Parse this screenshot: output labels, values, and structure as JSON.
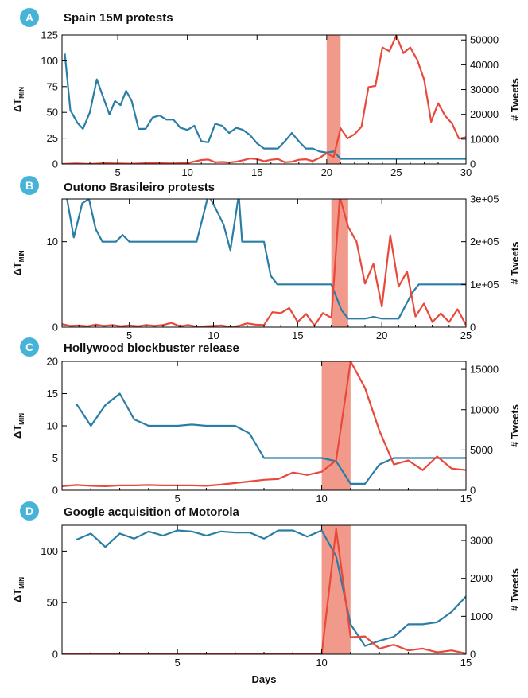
{
  "figure": {
    "xlabel": "Days"
  },
  "colors": {
    "blue": "#2a7ea6",
    "red": "#e8493a",
    "shade": "#f19a8c",
    "badge": "#48b3d9"
  },
  "chart_data": [
    {
      "panel": "A",
      "title": "Spain 15M protests",
      "type": "line",
      "ylabel_left": "ΔT",
      "ylabel_left_sub": "MIN",
      "ylabel_right": "# Tweets",
      "xlim": [
        1,
        30
      ],
      "ylim_left": [
        0,
        125
      ],
      "ylim_right": [
        0,
        52000
      ],
      "xticks": [
        5,
        10,
        15,
        20,
        25,
        30
      ],
      "yticks_left": [
        0,
        25,
        50,
        75,
        100,
        125
      ],
      "yticks_right": [
        0,
        10000,
        20000,
        30000,
        40000,
        50000
      ],
      "yticklabels_right": [
        "0",
        "10000",
        "20000",
        "30000",
        "40000",
        "50000"
      ],
      "shaded": [
        20,
        21
      ],
      "series": [
        {
          "axis": "left",
          "color": "blue",
          "x": [
            1.2,
            1.6,
            2.1,
            2.5,
            3.0,
            3.5,
            4.0,
            4.4,
            4.8,
            5.2,
            5.6,
            6.0,
            6.5,
            7.0,
            7.5,
            8.0,
            8.5,
            9.0,
            9.5,
            10.0,
            10.5,
            11.0,
            11.5,
            12.0,
            12.5,
            13.0,
            13.5,
            14.0,
            14.5,
            15.0,
            15.5,
            16.0,
            16.5,
            17.0,
            17.5,
            18.0,
            18.5,
            19.0,
            19.5,
            20.0,
            20.5,
            21.0,
            21.5,
            22.0,
            23.0,
            24.0,
            25.0,
            26.0,
            27.0,
            28.0,
            29.0,
            30.0
          ],
          "y": [
            107,
            52,
            40,
            34,
            50,
            82,
            63,
            48,
            61,
            57,
            71,
            61,
            34,
            34,
            45,
            47,
            43,
            43,
            35,
            33,
            37,
            22,
            21,
            39,
            37,
            30,
            35,
            33,
            28,
            20,
            15,
            15,
            15,
            22,
            30,
            22,
            15,
            15,
            12,
            11,
            12,
            5,
            5,
            5,
            5,
            5,
            5,
            5,
            5,
            5,
            5,
            5
          ]
        },
        {
          "axis": "right",
          "color": "red",
          "x": [
            1,
            2,
            3,
            4,
            5,
            6,
            7,
            8,
            9,
            10,
            11,
            11.5,
            12,
            12.5,
            13,
            13.5,
            14,
            14.5,
            15,
            15.5,
            16,
            16.5,
            17,
            17.5,
            18,
            18.5,
            19,
            19.5,
            20,
            20.5,
            21,
            21.5,
            22,
            22.5,
            23,
            23.5,
            24,
            24.5,
            25,
            25.5,
            26,
            26.5,
            27,
            27.5,
            28,
            28.5,
            29,
            29.5,
            30
          ],
          "y": [
            0,
            200,
            0,
            300,
            200,
            100,
            300,
            300,
            200,
            400,
            1600,
            1800,
            700,
            800,
            600,
            900,
            1500,
            2200,
            2000,
            1100,
            1700,
            2000,
            700,
            900,
            1700,
            1900,
            1200,
            2500,
            4300,
            2800,
            14400,
            10300,
            12000,
            15000,
            31000,
            31500,
            47000,
            45500,
            51800,
            44700,
            47000,
            42000,
            34000,
            17000,
            24500,
            19500,
            16300,
            10200,
            10800
          ]
        }
      ]
    },
    {
      "panel": "B",
      "title": "Outono Brasileiro protests",
      "type": "line",
      "ylabel_left": "ΔT",
      "ylabel_left_sub": "MIN",
      "ylabel_right": "# Tweets",
      "xlim": [
        1,
        25
      ],
      "ylim_left": [
        0,
        15
      ],
      "ylim_right": [
        0,
        300000
      ],
      "xticks": [
        5,
        10,
        15,
        20,
        25
      ],
      "yticks_left": [
        0,
        10
      ],
      "yticks_right": [
        0,
        100000,
        200000,
        300000
      ],
      "yticklabels_right": [
        "0",
        "1e+05",
        "2e+05",
        "3e+05"
      ],
      "shaded": [
        17,
        18
      ],
      "series": [
        {
          "axis": "left",
          "color": "blue",
          "x": [
            1.3,
            1.7,
            2.2,
            2.6,
            3.0,
            3.4,
            3.8,
            4.2,
            4.6,
            5.0,
            5.4,
            6.0,
            7.0,
            8.0,
            9.0,
            9.7,
            10.1,
            10.6,
            11.0,
            11.5,
            11.7,
            12.3,
            12.5,
            13.0,
            13.4,
            13.8,
            14.2,
            14.6,
            15.5,
            16.0,
            16.5,
            17.0,
            17.6,
            18.0,
            19.0,
            19.5,
            20.0,
            20.5,
            21.0,
            21.4,
            21.8,
            22.2,
            23.0,
            24.0,
            25.0
          ],
          "y": [
            15,
            10.5,
            14.5,
            15,
            11.5,
            10,
            10,
            10,
            10.8,
            10,
            10,
            10,
            10,
            10,
            10,
            15.5,
            14,
            12,
            9,
            15.5,
            10,
            10,
            10,
            10,
            6,
            5,
            5,
            5,
            5,
            5,
            5,
            5,
            2,
            1,
            1,
            1.2,
            1,
            1,
            1,
            2.5,
            4,
            5,
            5,
            5,
            5
          ]
        },
        {
          "axis": "right",
          "color": "red",
          "x": [
            1.0,
            1.5,
            2.0,
            2.5,
            3.0,
            3.5,
            4.0,
            4.5,
            5.0,
            5.5,
            6.0,
            6.5,
            7.0,
            7.5,
            8.0,
            8.5,
            9.0,
            9.5,
            10.0,
            10.5,
            11.0,
            11.5,
            12.0,
            12.5,
            13.0,
            13.5,
            14.0,
            14.5,
            15.0,
            15.5,
            16.0,
            16.5,
            17.0,
            17.5,
            18.0,
            18.5,
            19.0,
            19.5,
            20.0,
            20.5,
            21.0,
            21.5,
            22.0,
            22.5,
            23.0,
            23.5,
            24.0,
            24.5,
            25.0
          ],
          "y": [
            7000,
            3000,
            4000,
            2000,
            6000,
            3000,
            5000,
            2000,
            4000,
            2000,
            5000,
            3000,
            5000,
            10000,
            2000,
            5000,
            1000,
            2000,
            3000,
            4000,
            0,
            3000,
            9000,
            6000,
            5000,
            35000,
            33000,
            45000,
            12000,
            31000,
            4000,
            33000,
            22000,
            305000,
            235000,
            200000,
            102000,
            148000,
            48000,
            215000,
            95000,
            130000,
            25000,
            55000,
            12000,
            32000,
            12000,
            42000,
            5000
          ]
        }
      ]
    },
    {
      "panel": "C",
      "title": "Hollywood blockbuster release",
      "type": "line",
      "ylabel_left": "ΔT",
      "ylabel_left_sub": "MIN",
      "ylabel_right": "# Tweets",
      "xlim": [
        1,
        15
      ],
      "ylim_left": [
        0,
        20
      ],
      "ylim_right": [
        0,
        16000
      ],
      "xticks": [
        5,
        10,
        15
      ],
      "yticks_left": [
        0,
        5,
        10,
        15,
        20
      ],
      "yticks_right": [
        0,
        5000,
        10000,
        15000
      ],
      "yticklabels_right": [
        "0",
        "5000",
        "10000",
        "15000"
      ],
      "shaded": [
        10,
        11
      ],
      "series": [
        {
          "axis": "left",
          "color": "blue",
          "x": [
            1.5,
            2.0,
            2.5,
            3.0,
            3.5,
            4.0,
            4.5,
            5.0,
            5.5,
            6.0,
            6.5,
            7.0,
            7.5,
            8.0,
            8.5,
            9.0,
            9.5,
            10.0,
            10.5,
            11.0,
            11.5,
            12.0,
            12.5,
            13.0,
            13.5,
            14.0,
            14.5,
            15.0
          ],
          "y": [
            13.4,
            10,
            13.2,
            15,
            11,
            10,
            10,
            10,
            10.2,
            10,
            10,
            10,
            8.8,
            5,
            5,
            5,
            5,
            5,
            4.5,
            1,
            1,
            4,
            5,
            5,
            5,
            5,
            5,
            5
          ]
        },
        {
          "axis": "right",
          "color": "red",
          "x": [
            1.0,
            1.5,
            2.0,
            2.5,
            3.0,
            3.5,
            4.0,
            4.5,
            5.0,
            5.5,
            6.0,
            6.5,
            7.0,
            7.5,
            8.0,
            8.5,
            9.0,
            9.5,
            10.0,
            10.5,
            11.0,
            11.5,
            12.0,
            12.5,
            13.0,
            13.5,
            14.0,
            14.5,
            15.0
          ],
          "y": [
            500,
            650,
            550,
            500,
            600,
            600,
            650,
            600,
            600,
            600,
            550,
            700,
            900,
            1100,
            1300,
            1400,
            2200,
            1900,
            2300,
            3700,
            16000,
            12700,
            7400,
            3200,
            3700,
            2500,
            4200,
            2700,
            2500
          ]
        }
      ]
    },
    {
      "panel": "D",
      "title": "Google acquisition of Motorola",
      "type": "line",
      "ylabel_left": "ΔT",
      "ylabel_left_sub": "MIN",
      "ylabel_right": "# Tweets",
      "xlim": [
        1,
        15
      ],
      "ylim_left": [
        0,
        125
      ],
      "ylim_right": [
        0,
        3400
      ],
      "xticks": [
        5,
        10,
        15
      ],
      "yticks_left": [
        0,
        50,
        100
      ],
      "yticks_right": [
        0,
        1000,
        2000,
        3000
      ],
      "yticklabels_right": [
        "0",
        "1000",
        "2000",
        "3000"
      ],
      "shaded": [
        10,
        11
      ],
      "series": [
        {
          "axis": "left",
          "color": "blue",
          "x": [
            1.5,
            2.0,
            2.5,
            3.0,
            3.5,
            4.0,
            4.5,
            5.0,
            5.5,
            6.0,
            6.5,
            7.0,
            7.5,
            8.0,
            8.5,
            9.0,
            9.5,
            10.0,
            10.5,
            11.0,
            11.5,
            12.0,
            12.5,
            13.0,
            13.5,
            14.0,
            14.5,
            15.0
          ],
          "y": [
            111,
            117,
            104,
            117,
            112,
            119,
            115,
            120,
            119,
            115,
            119,
            118,
            118,
            112,
            120,
            120,
            114,
            120,
            95,
            29,
            8,
            13,
            17,
            29,
            29,
            31,
            41,
            56
          ]
        },
        {
          "axis": "right",
          "color": "red",
          "x": [
            1,
            2,
            3,
            4,
            5,
            6,
            7,
            8,
            9,
            10,
            10.5,
            11.0,
            11.5,
            12.0,
            12.5,
            13.0,
            13.5,
            14.0,
            14.5,
            15.0
          ],
          "y": [
            0,
            0,
            0,
            0,
            0,
            0,
            0,
            0,
            0,
            0,
            3300,
            450,
            470,
            150,
            250,
            100,
            150,
            50,
            100,
            20
          ]
        }
      ]
    }
  ]
}
